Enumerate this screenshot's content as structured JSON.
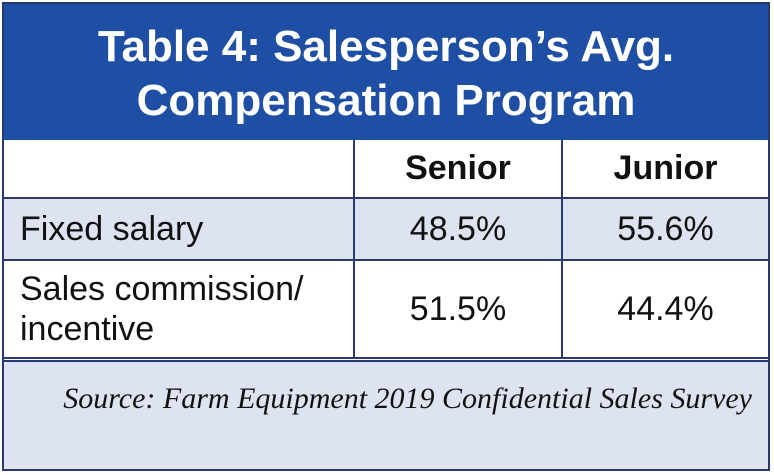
{
  "title": {
    "line1": "Table 4: Salesperson’s Avg.",
    "line2": "Compensation Program"
  },
  "colors": {
    "title_bg": "#1f4fa5",
    "row_alt_bg": "#dde3f1",
    "border": "#2a3a6e"
  },
  "chart_data": {
    "type": "table",
    "title": "Table 4: Salesperson’s Avg. Compensation Program",
    "columns": [
      "",
      "Senior",
      "Junior"
    ],
    "rows": [
      {
        "label": "Fixed salary",
        "values": [
          "48.5%",
          "55.6%"
        ]
      },
      {
        "label": "Sales commission/ incentive",
        "values": [
          "51.5%",
          "44.4%"
        ]
      }
    ],
    "source": "Source: Farm Equipment 2019 Confidential Sales Survey"
  }
}
